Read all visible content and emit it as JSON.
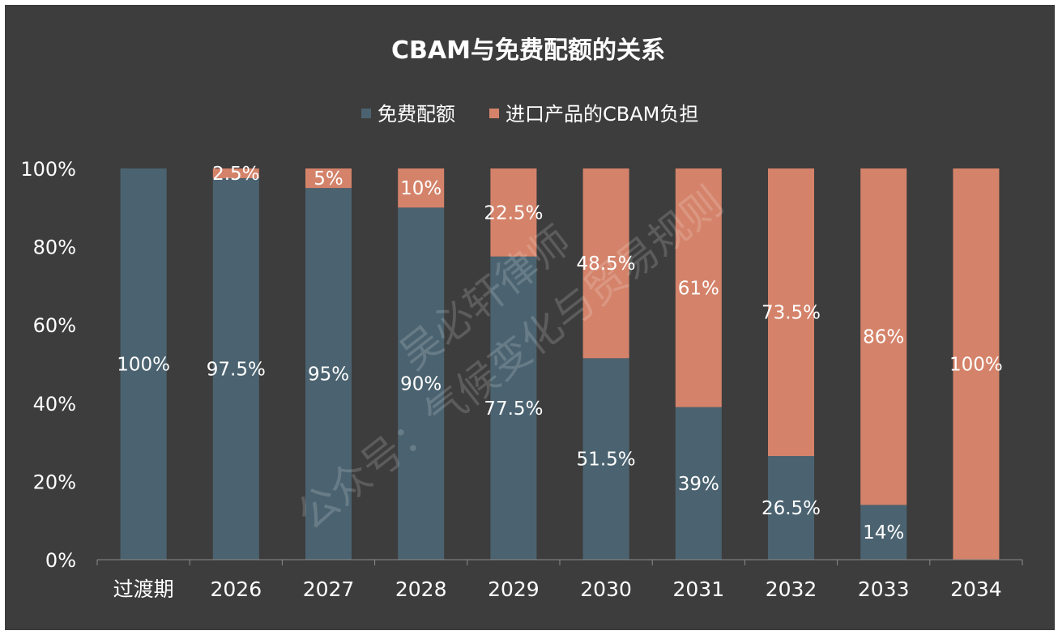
{
  "chart_data": {
    "type": "bar",
    "stacked": true,
    "title": "CBAM与免费配额的关系",
    "categories": [
      "过渡期",
      "2026",
      "2027",
      "2028",
      "2029",
      "2030",
      "2031",
      "2032",
      "2033",
      "2034"
    ],
    "series": [
      {
        "name": "免费配额",
        "color": "#4b6370",
        "values": [
          100,
          97.5,
          95,
          90,
          77.5,
          51.5,
          39,
          26.5,
          14,
          0
        ],
        "labels": [
          "100%",
          "97.5%",
          "95%",
          "90%",
          "77.5%",
          "51.5%",
          "39%",
          "26.5%",
          "14%",
          ""
        ]
      },
      {
        "name": "进口产品的CBAM负担",
        "color": "#d4836a",
        "values": [
          0,
          2.5,
          5,
          10,
          22.5,
          48.5,
          61,
          73.5,
          86,
          100
        ],
        "labels": [
          "",
          "2.5%",
          "5%",
          "10%",
          "22.5%",
          "48.5%",
          "61%",
          "73.5%",
          "86%",
          "100%"
        ]
      }
    ],
    "ylim": [
      0,
      100
    ],
    "yticks": [
      "0%",
      "20%",
      "40%",
      "60%",
      "80%",
      "100%"
    ],
    "legend_position": "top-center",
    "grid": false,
    "background": "#3d3d3d"
  },
  "watermark": {
    "line1": "吴必轩律师",
    "line2": "公众号：气候变化与贸易规则"
  }
}
